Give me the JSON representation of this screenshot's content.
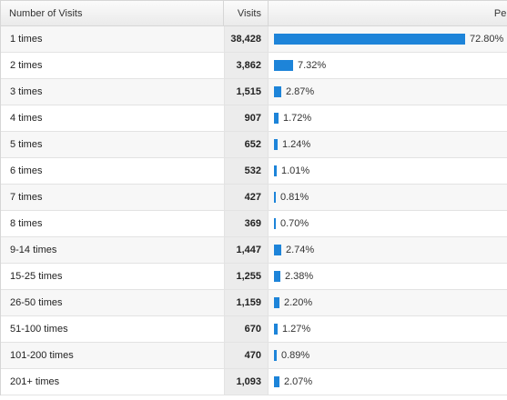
{
  "table": {
    "header": {
      "col_label": "Number of Visits",
      "col_visits": "Visits",
      "col_percentage": "Per"
    },
    "rows": [
      {
        "label": "1 times",
        "visits": "38,428",
        "percent_text": "72.80%",
        "percent": 72.8
      },
      {
        "label": "2 times",
        "visits": "3,862",
        "percent_text": "7.32%",
        "percent": 7.32
      },
      {
        "label": "3 times",
        "visits": "1,515",
        "percent_text": "2.87%",
        "percent": 2.87
      },
      {
        "label": "4 times",
        "visits": "907",
        "percent_text": "1.72%",
        "percent": 1.72
      },
      {
        "label": "5 times",
        "visits": "652",
        "percent_text": "1.24%",
        "percent": 1.24
      },
      {
        "label": "6 times",
        "visits": "532",
        "percent_text": "1.01%",
        "percent": 1.01
      },
      {
        "label": "7 times",
        "visits": "427",
        "percent_text": "0.81%",
        "percent": 0.81
      },
      {
        "label": "8 times",
        "visits": "369",
        "percent_text": "0.70%",
        "percent": 0.7
      },
      {
        "label": "9-14 times",
        "visits": "1,447",
        "percent_text": "2.74%",
        "percent": 2.74
      },
      {
        "label": "15-25 times",
        "visits": "1,255",
        "percent_text": "2.38%",
        "percent": 2.38
      },
      {
        "label": "26-50 times",
        "visits": "1,159",
        "percent_text": "2.20%",
        "percent": 2.2
      },
      {
        "label": "51-100 times",
        "visits": "670",
        "percent_text": "1.27%",
        "percent": 1.27
      },
      {
        "label": "101-200 times",
        "visits": "470",
        "percent_text": "0.89%",
        "percent": 0.89
      },
      {
        "label": "201+ times",
        "visits": "1,093",
        "percent_text": "2.07%",
        "percent": 2.07
      }
    ]
  },
  "colors": {
    "bar": "#1d84d9"
  }
}
